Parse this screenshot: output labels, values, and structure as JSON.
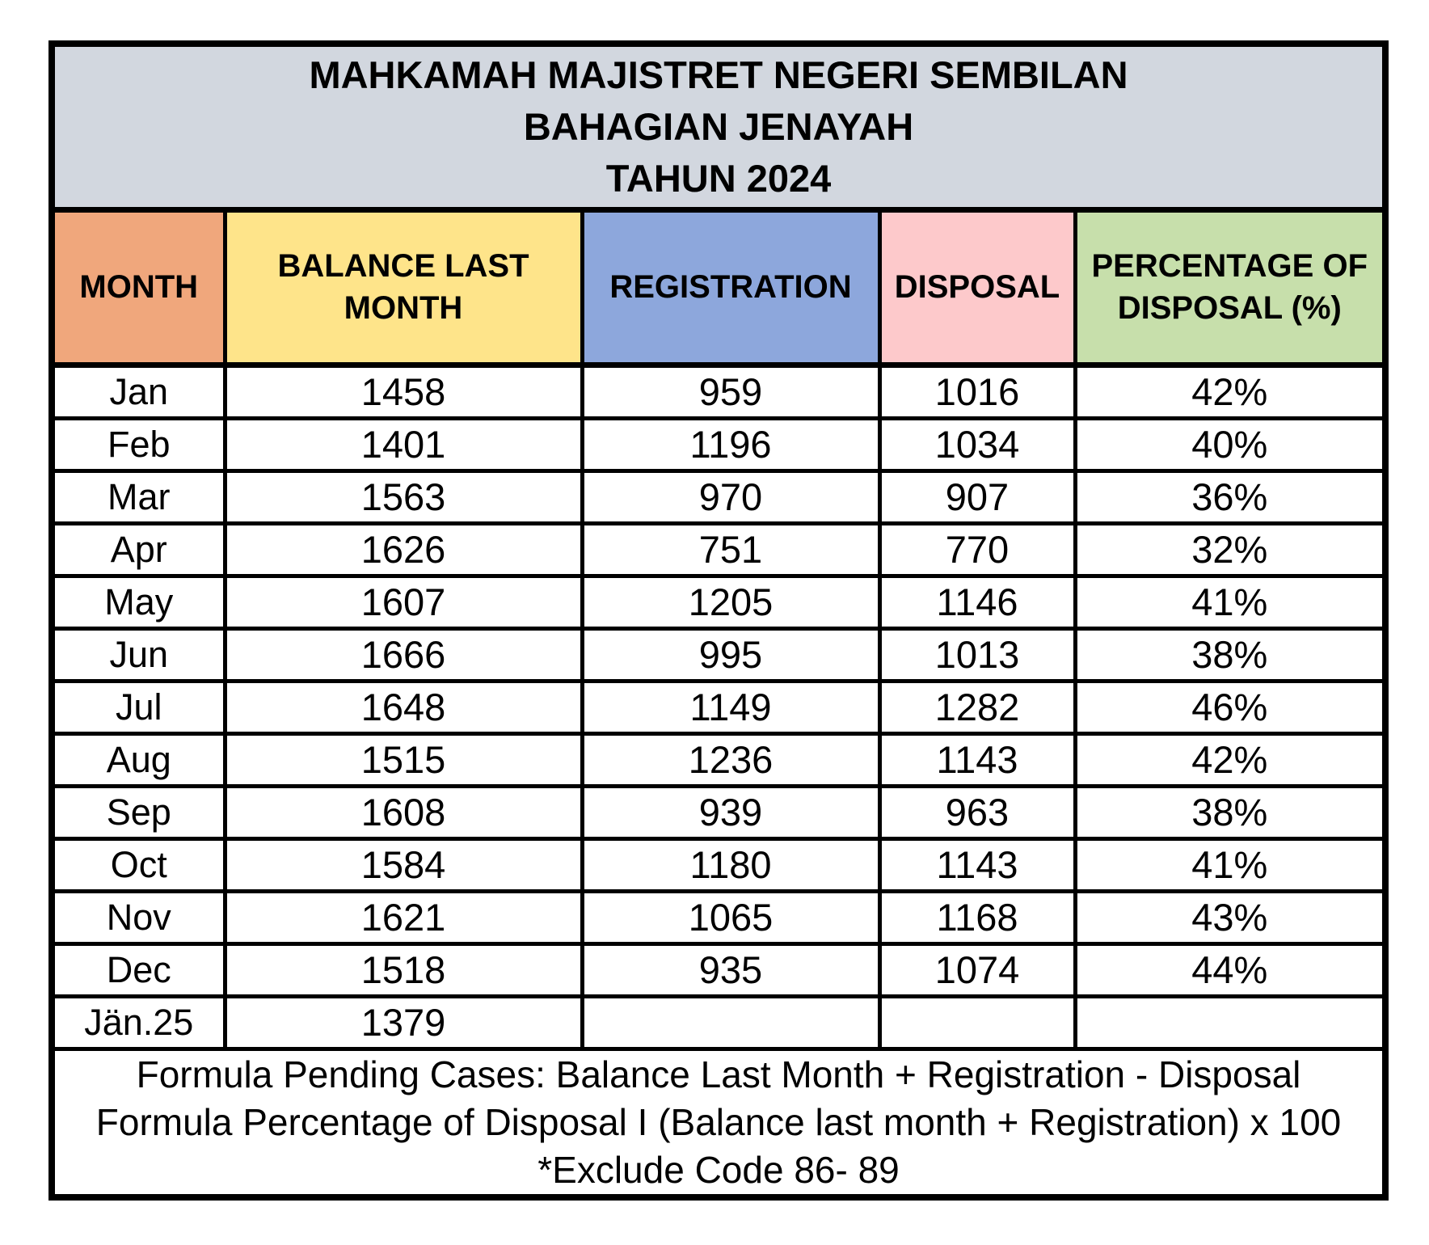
{
  "title": {
    "line1": "MAHKAMAH MAJISTRET NEGERI SEMBILAN",
    "line2": "BAHAGIAN JENAYAH",
    "line3": "TAHUN 2024"
  },
  "colors": {
    "title_band": "#D2D7DF",
    "border": "#000000",
    "page_background": "#ffffff"
  },
  "table": {
    "columns": [
      {
        "key": "month",
        "label": "MONTH",
        "color": "#F0A77C"
      },
      {
        "key": "balance",
        "label": "BALANCE LAST MONTH",
        "color": "#FEE48A"
      },
      {
        "key": "registration",
        "label": "REGISTRATION",
        "color": "#8DA7DC"
      },
      {
        "key": "disposal",
        "label": "DISPOSAL",
        "color": "#FDC9CB"
      },
      {
        "key": "percentage",
        "label": "PERCENTAGE OF DISPOSAL (%)",
        "color": "#C7DFAB"
      }
    ],
    "rows": [
      {
        "month": "Jan",
        "balance": "1458",
        "registration": "959",
        "disposal": "1016",
        "percentage": "42%"
      },
      {
        "month": "Feb",
        "balance": "1401",
        "registration": "1196",
        "disposal": "1034",
        "percentage": "40%"
      },
      {
        "month": "Mar",
        "balance": "1563",
        "registration": "970",
        "disposal": "907",
        "percentage": "36%"
      },
      {
        "month": "Apr",
        "balance": "1626",
        "registration": "751",
        "disposal": "770",
        "percentage": "32%"
      },
      {
        "month": "May",
        "balance": "1607",
        "registration": "1205",
        "disposal": "1146",
        "percentage": "41%"
      },
      {
        "month": "Jun",
        "balance": "1666",
        "registration": "995",
        "disposal": "1013",
        "percentage": "38%"
      },
      {
        "month": "Jul",
        "balance": "1648",
        "registration": "1149",
        "disposal": "1282",
        "percentage": "46%"
      },
      {
        "month": "Aug",
        "balance": "1515",
        "registration": "1236",
        "disposal": "1143",
        "percentage": "42%"
      },
      {
        "month": "Sep",
        "balance": "1608",
        "registration": "939",
        "disposal": "963",
        "percentage": "38%"
      },
      {
        "month": "Oct",
        "balance": "1584",
        "registration": "1180",
        "disposal": "1143",
        "percentage": "41%"
      },
      {
        "month": "Nov",
        "balance": "1621",
        "registration": "1065",
        "disposal": "1168",
        "percentage": "43%"
      },
      {
        "month": "Dec",
        "balance": "1518",
        "registration": "935",
        "disposal": "1074",
        "percentage": "44%"
      },
      {
        "month": "Jän.25",
        "balance": "1379",
        "registration": "",
        "disposal": "",
        "percentage": ""
      }
    ]
  },
  "footer": {
    "line1": "Formula Pending Cases: Balance Last Month + Registration - Disposal",
    "line2": "Formula Percentage of Disposal I (Balance last month + Registration) x 100",
    "line3": "*Exclude Code 86- 89"
  }
}
